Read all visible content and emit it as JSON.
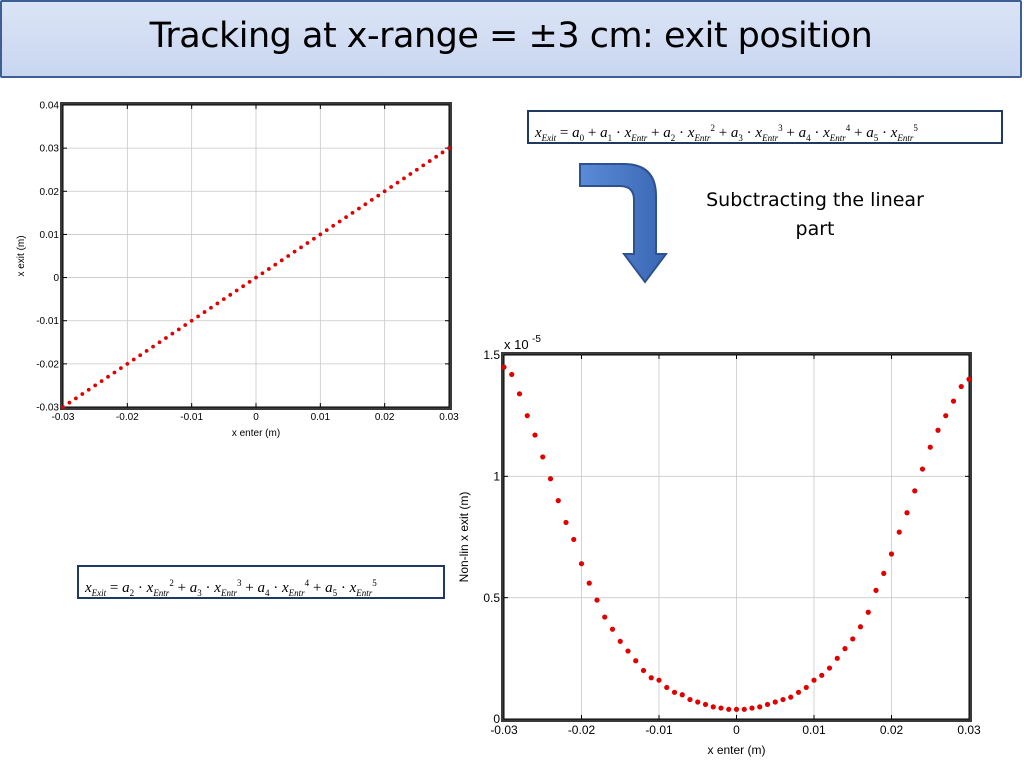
{
  "slide": {
    "title": "Tracking at x-range = ±3 cm: exit position",
    "note": "Subctracting the linear part",
    "arrow_icon": "curved-down-arrow-icon",
    "accent_color": "#4472c4"
  },
  "formulas": {
    "full": "x_Exit = a0 + a1·x_Entr + a2·x_Entr^2 + a3·x_Entr^3 + a4·x_Entr^4 + a5·x_Entr^5",
    "nonlinear": "x_Exit = a2·x_Entr^2 + a3·x_Entr^3 + a4·x_Entr^4 + a5·x_Entr^5",
    "lhs": "x",
    "lhs_sub": "Exit",
    "var": "x",
    "var_sub": "Entr",
    "coef": "a"
  },
  "chart_data": [
    {
      "type": "scatter",
      "xlabel": "x enter (m)",
      "ylabel": "x exit (m)",
      "xlim": [
        -0.03,
        0.03
      ],
      "ylim": [
        -0.03,
        0.04
      ],
      "xticks": [
        -0.03,
        -0.02,
        -0.01,
        0,
        0.01,
        0.02,
        0.03
      ],
      "xtick_labels": [
        "-0.03",
        "-0.02",
        "-0.01",
        "0",
        "0.01",
        "0.02",
        "0.03"
      ],
      "yticks": [
        -0.03,
        -0.02,
        -0.01,
        0,
        0.01,
        0.02,
        0.03,
        0.04
      ],
      "ytick_labels": [
        "-0.03",
        "-0.02",
        "-0.01",
        "0",
        "0.01",
        "0.02",
        "0.03",
        "0.04"
      ],
      "grid": true,
      "color": "#e00000",
      "series": [
        {
          "x": [
            -0.03,
            -0.029,
            -0.028,
            -0.027,
            -0.026,
            -0.025,
            -0.024,
            -0.023,
            -0.022,
            -0.021,
            -0.02,
            -0.019,
            -0.018,
            -0.017,
            -0.016,
            -0.015,
            -0.014,
            -0.013,
            -0.012,
            -0.011,
            -0.01,
            -0.009,
            -0.008,
            -0.007,
            -0.006,
            -0.005,
            -0.004,
            -0.003,
            -0.002,
            -0.001,
            0,
            0.001,
            0.002,
            0.003,
            0.004,
            0.005,
            0.006,
            0.007,
            0.008,
            0.009,
            0.01,
            0.011,
            0.012,
            0.013,
            0.014,
            0.015,
            0.016,
            0.017,
            0.018,
            0.019,
            0.02,
            0.021,
            0.022,
            0.023,
            0.024,
            0.025,
            0.026,
            0.027,
            0.028,
            0.029,
            0.03
          ],
          "y": [
            -0.03,
            -0.029,
            -0.028,
            -0.027,
            -0.026,
            -0.025,
            -0.024,
            -0.023,
            -0.022,
            -0.021,
            -0.02,
            -0.019,
            -0.018,
            -0.017,
            -0.016,
            -0.015,
            -0.014,
            -0.013,
            -0.012,
            -0.011,
            -0.01,
            -0.009,
            -0.008,
            -0.007,
            -0.006,
            -0.005,
            -0.004,
            -0.003,
            -0.002,
            -0.001,
            0,
            0.001,
            0.002,
            0.003,
            0.004,
            0.005,
            0.006,
            0.007,
            0.008,
            0.009,
            0.01,
            0.011,
            0.012,
            0.013,
            0.014,
            0.015,
            0.016,
            0.017,
            0.018,
            0.019,
            0.02,
            0.021,
            0.022,
            0.023,
            0.024,
            0.025,
            0.026,
            0.027,
            0.028,
            0.029,
            0.03
          ]
        }
      ]
    },
    {
      "type": "scatter",
      "xlabel": "x enter (m)",
      "ylabel": "Non-lin x exit (m)",
      "y_multiplier": "x 10",
      "y_multiplier_exp": "-5",
      "xlim": [
        -0.03,
        0.03
      ],
      "ylim": [
        0,
        1.5
      ],
      "xticks": [
        -0.03,
        -0.02,
        -0.01,
        0,
        0.01,
        0.02,
        0.03
      ],
      "xtick_labels": [
        "-0.03",
        "-0.02",
        "-0.01",
        "0",
        "0.01",
        "0.02",
        "0.03"
      ],
      "yticks": [
        0,
        0.5,
        1,
        1.5
      ],
      "ytick_labels": [
        "0",
        "0.5",
        "1",
        "1.5"
      ],
      "grid": true,
      "color": "#e00000",
      "series": [
        {
          "x": [
            -0.03,
            -0.029,
            -0.028,
            -0.027,
            -0.026,
            -0.025,
            -0.024,
            -0.023,
            -0.022,
            -0.021,
            -0.02,
            -0.019,
            -0.018,
            -0.017,
            -0.016,
            -0.015,
            -0.014,
            -0.013,
            -0.012,
            -0.011,
            -0.01,
            -0.009,
            -0.008,
            -0.007,
            -0.006,
            -0.005,
            -0.004,
            -0.003,
            -0.002,
            -0.001,
            0,
            0.001,
            0.002,
            0.003,
            0.004,
            0.005,
            0.006,
            0.007,
            0.008,
            0.009,
            0.01,
            0.011,
            0.012,
            0.013,
            0.014,
            0.015,
            0.016,
            0.017,
            0.018,
            0.019,
            0.02,
            0.021,
            0.022,
            0.023,
            0.024,
            0.025,
            0.026,
            0.027,
            0.028,
            0.029,
            0.03
          ],
          "y": [
            1.45,
            1.42,
            1.34,
            1.25,
            1.17,
            1.08,
            0.99,
            0.9,
            0.81,
            0.74,
            0.64,
            0.56,
            0.49,
            0.42,
            0.37,
            0.32,
            0.28,
            0.24,
            0.2,
            0.17,
            0.16,
            0.13,
            0.11,
            0.1,
            0.08,
            0.07,
            0.06,
            0.05,
            0.045,
            0.04,
            0.04,
            0.04,
            0.045,
            0.05,
            0.06,
            0.07,
            0.08,
            0.09,
            0.11,
            0.13,
            0.16,
            0.18,
            0.21,
            0.25,
            0.29,
            0.33,
            0.38,
            0.44,
            0.53,
            0.6,
            0.68,
            0.77,
            0.85,
            0.94,
            1.03,
            1.12,
            1.19,
            1.25,
            1.31,
            1.37,
            1.4
          ]
        }
      ]
    }
  ]
}
